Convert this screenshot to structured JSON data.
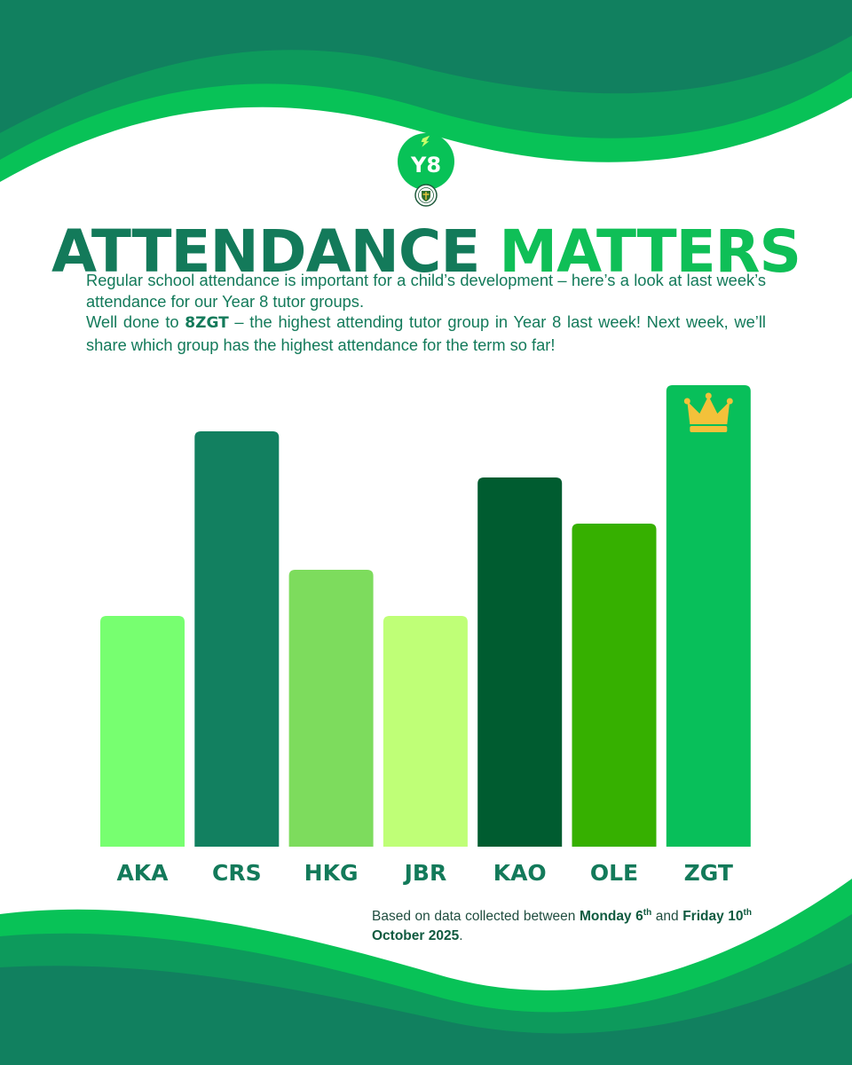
{
  "title": {
    "part1": "ATTENDANCE",
    "part2": "MATTERS"
  },
  "logo": {
    "text": "Y8",
    "badge_icon": "school-crest-icon",
    "accent_icon": "lightning-icon"
  },
  "intro": {
    "p1": "Regular school attendance is important for a child’s development – here’s a look at last week’s attendance for our Year 8 tutor groups.",
    "p2_pre": "Well done to ",
    "p2_bold": "8ZGT",
    "p2_post": " – the highest attending tutor group in Year 8 last week! Next week, we’ll share which group has the highest attendance for the term so far!"
  },
  "footnote": {
    "pre": "Based on data collected between ",
    "start_bold": "Monday 6",
    "start_sup": "th",
    "mid": " and ",
    "end_bold": "Friday 10",
    "end_sup": "th",
    "end_rest": " October 2025",
    "post": "."
  },
  "colors": {
    "dark_green": "#137a5a",
    "bright_green": "#0fbf57",
    "wave_dark": "#11805f",
    "wave_mid": "#0d9a5c",
    "wave_bright": "#08c257"
  },
  "chart_data": {
    "type": "bar",
    "categories": [
      "AKA",
      "CRS",
      "HKG",
      "JBR",
      "KAO",
      "OLE",
      "ZGT"
    ],
    "values": [
      5,
      9,
      6,
      5,
      8,
      7,
      10
    ],
    "ylim": [
      0,
      10
    ],
    "bar_colors": [
      "#77ff70",
      "#128060",
      "#7ddc5d",
      "#bfff77",
      "#005c30",
      "#36b000",
      "#08bf5a"
    ],
    "highlight": {
      "category": "ZGT",
      "icon": "crown-icon"
    }
  }
}
